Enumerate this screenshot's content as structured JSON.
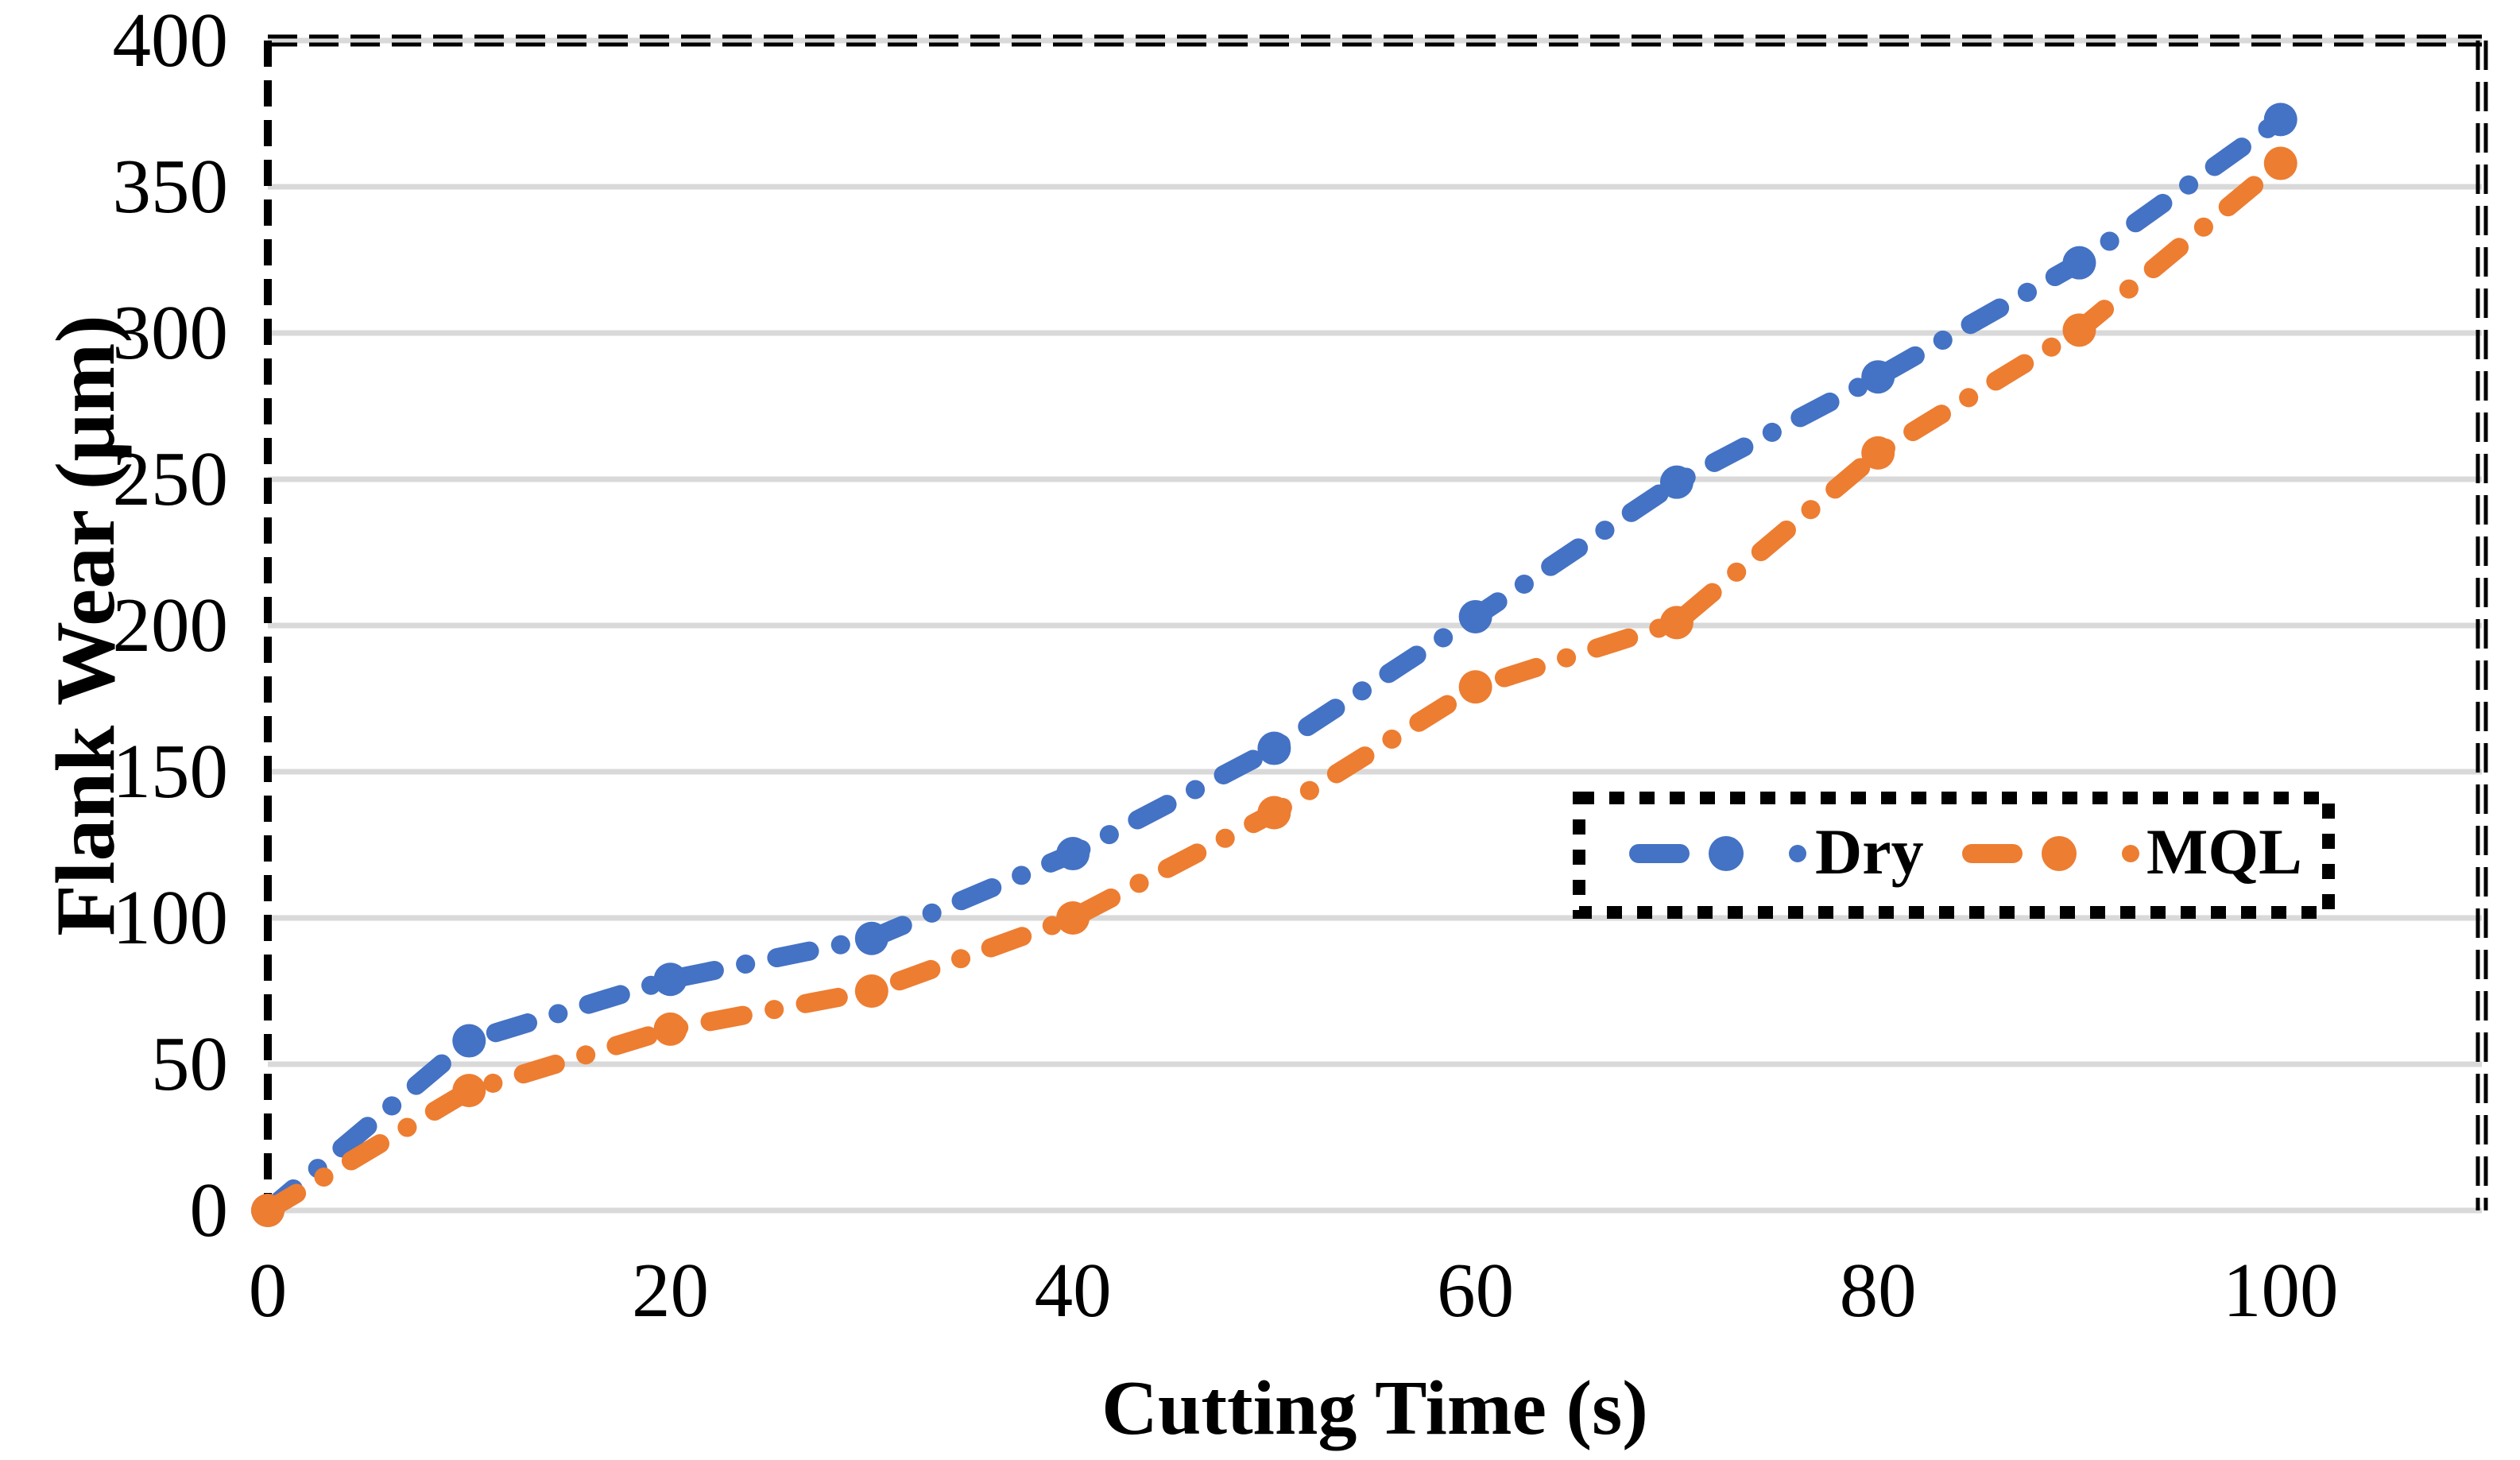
{
  "chart_data": {
    "type": "line",
    "x": [
      0,
      10,
      20,
      30,
      40,
      50,
      60,
      70,
      80,
      90,
      100
    ],
    "series": [
      {
        "name": "Dry",
        "color": "#4472C4",
        "values": [
          0,
          58,
          79,
          93,
          122,
          158,
          203,
          249,
          285,
          324,
          373
        ]
      },
      {
        "name": "MQL",
        "color": "#ED7D31",
        "values": [
          0,
          41,
          62,
          75,
          100,
          136,
          179,
          201,
          259,
          301,
          358
        ]
      }
    ],
    "xlabel": "Cutting Time (s)",
    "ylabel": "Flank Wear (µm)",
    "xlim": [
      0,
      110
    ],
    "ylim": [
      0,
      400
    ],
    "xticks": [
      0,
      20,
      40,
      60,
      80,
      100
    ],
    "yticks": [
      0,
      50,
      100,
      150,
      200,
      250,
      300,
      350,
      400
    ],
    "xtick_labels": [
      "0",
      "20",
      "40",
      "60",
      "80",
      "100"
    ],
    "ytick_labels": [
      "0",
      "50",
      "100",
      "150",
      "200",
      "250",
      "300",
      "350",
      "400"
    ],
    "grid": "horizontal",
    "gridline_color": "#D9D9D9",
    "plot_border_style": "dashed-black",
    "line_style": "dash-dot-round-markers",
    "legend": {
      "position": "inside-right",
      "border": "dotted-black",
      "entries": [
        "Dry",
        "MQL"
      ]
    }
  }
}
